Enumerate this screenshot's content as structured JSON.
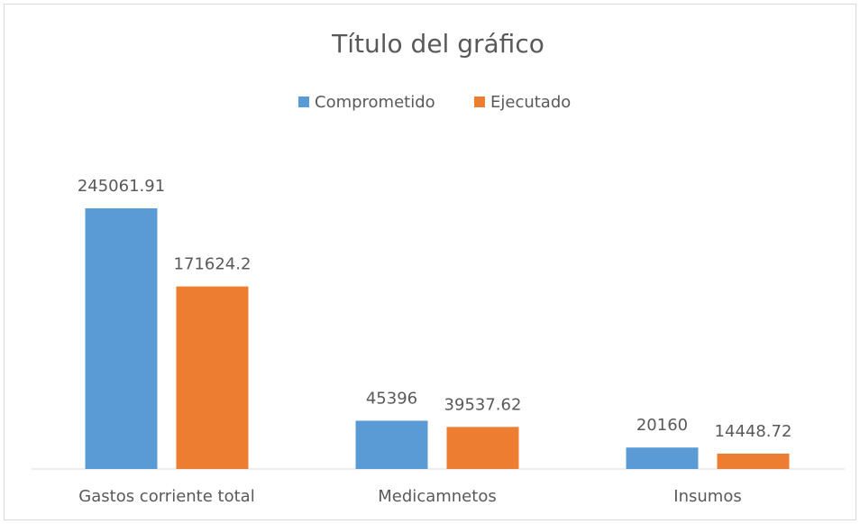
{
  "chart_data": {
    "type": "bar",
    "title": "Título del gráfico",
    "categories": [
      "Gastos corriente total",
      "Medicamnetos",
      "Insumos"
    ],
    "series": [
      {
        "name": "Comprometido",
        "color": "#5b9bd5",
        "values": [
          245061.91,
          45396,
          20160
        ]
      },
      {
        "name": "Ejecutado",
        "color": "#ed7d31",
        "values": [
          171624.2,
          39537.62,
          14448.72
        ]
      }
    ],
    "legend": "top"
  }
}
